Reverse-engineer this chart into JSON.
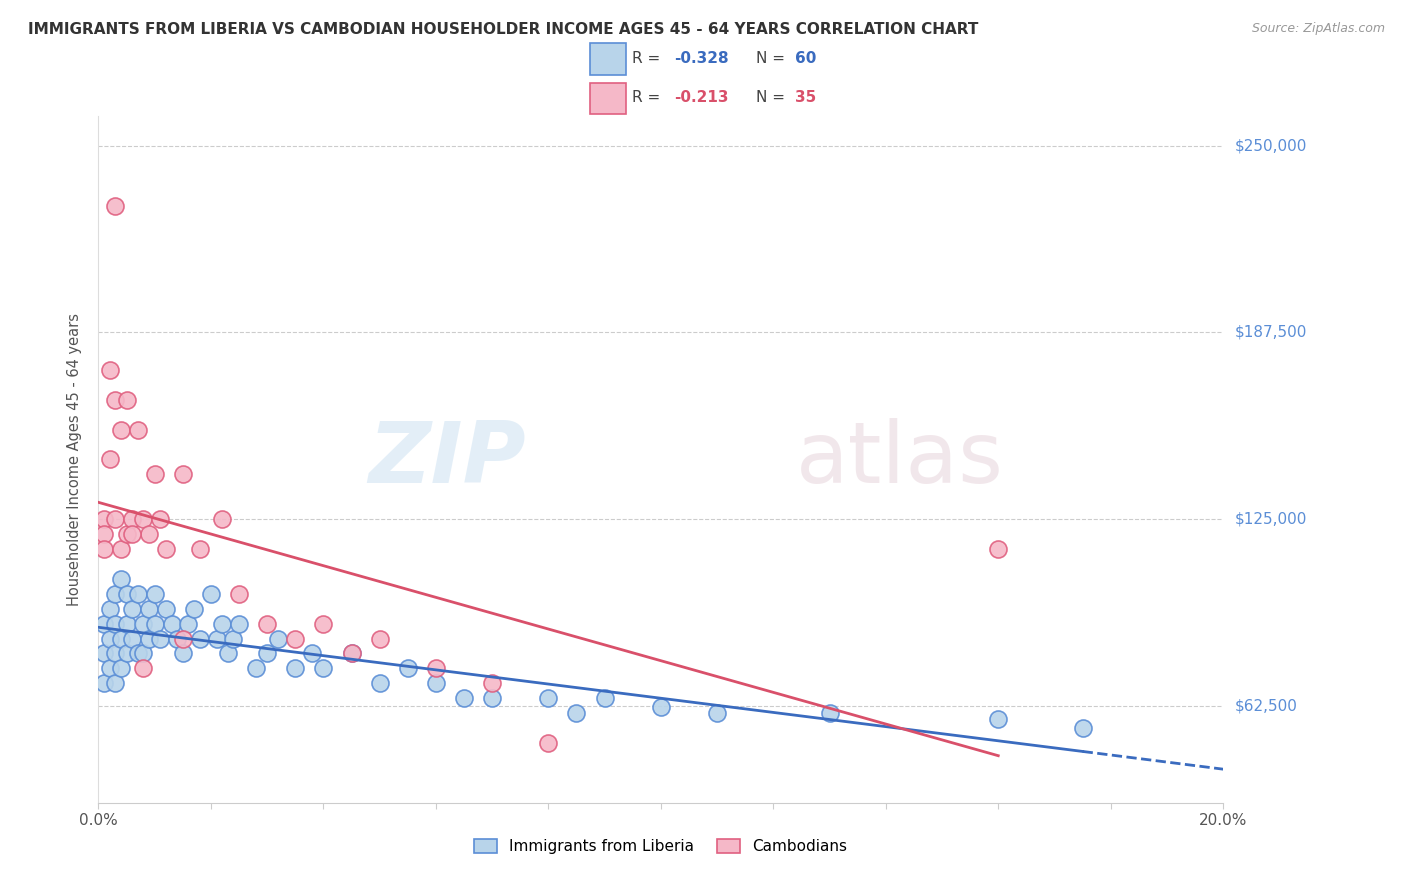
{
  "title": "IMMIGRANTS FROM LIBERIA VS CAMBODIAN HOUSEHOLDER INCOME AGES 45 - 64 YEARS CORRELATION CHART",
  "source": "Source: ZipAtlas.com",
  "ylabel": "Householder Income Ages 45 - 64 years",
  "legend_label1": "Immigrants from Liberia",
  "legend_label2": "Cambodians",
  "r1": -0.328,
  "n1": 60,
  "r2": -0.213,
  "n2": 35,
  "color1_face": "#b8d4ea",
  "color1_edge": "#5b8ed6",
  "color2_face": "#f5b8c8",
  "color2_edge": "#e06080",
  "line_color1": "#3a6bbf",
  "line_color2": "#d9506a",
  "ytick_labels": [
    "$62,500",
    "$125,000",
    "$187,500",
    "$250,000"
  ],
  "ytick_values": [
    62500,
    125000,
    187500,
    250000
  ],
  "ytick_color": "#5b8ed6",
  "xlim": [
    0.0,
    0.2
  ],
  "ylim": [
    30000,
    260000
  ],
  "watermark_zip": "ZIP",
  "watermark_atlas": "atlas",
  "background_color": "#ffffff",
  "blue_x": [
    0.001,
    0.001,
    0.001,
    0.002,
    0.002,
    0.002,
    0.003,
    0.003,
    0.003,
    0.003,
    0.004,
    0.004,
    0.004,
    0.005,
    0.005,
    0.005,
    0.006,
    0.006,
    0.007,
    0.007,
    0.008,
    0.008,
    0.009,
    0.009,
    0.01,
    0.01,
    0.011,
    0.012,
    0.013,
    0.014,
    0.015,
    0.016,
    0.017,
    0.018,
    0.02,
    0.021,
    0.022,
    0.023,
    0.024,
    0.025,
    0.028,
    0.03,
    0.032,
    0.035,
    0.038,
    0.04,
    0.045,
    0.05,
    0.055,
    0.06,
    0.065,
    0.07,
    0.08,
    0.085,
    0.09,
    0.1,
    0.11,
    0.13,
    0.16,
    0.175
  ],
  "blue_y": [
    90000,
    80000,
    70000,
    95000,
    85000,
    75000,
    100000,
    90000,
    80000,
    70000,
    105000,
    85000,
    75000,
    100000,
    90000,
    80000,
    95000,
    85000,
    100000,
    80000,
    90000,
    80000,
    95000,
    85000,
    100000,
    90000,
    85000,
    95000,
    90000,
    85000,
    80000,
    90000,
    95000,
    85000,
    100000,
    85000,
    90000,
    80000,
    85000,
    90000,
    75000,
    80000,
    85000,
    75000,
    80000,
    75000,
    80000,
    70000,
    75000,
    70000,
    65000,
    65000,
    65000,
    60000,
    65000,
    62000,
    60000,
    60000,
    58000,
    55000
  ],
  "pink_x": [
    0.001,
    0.001,
    0.001,
    0.002,
    0.002,
    0.003,
    0.003,
    0.004,
    0.004,
    0.005,
    0.005,
    0.006,
    0.007,
    0.008,
    0.009,
    0.01,
    0.011,
    0.012,
    0.015,
    0.018,
    0.022,
    0.025,
    0.03,
    0.035,
    0.04,
    0.045,
    0.05,
    0.06,
    0.07,
    0.08,
    0.015,
    0.006,
    0.008,
    0.16,
    0.003
  ],
  "pink_y": [
    125000,
    120000,
    115000,
    175000,
    145000,
    165000,
    125000,
    155000,
    115000,
    120000,
    165000,
    125000,
    155000,
    125000,
    120000,
    140000,
    125000,
    115000,
    140000,
    115000,
    125000,
    100000,
    90000,
    85000,
    90000,
    80000,
    85000,
    75000,
    70000,
    50000,
    85000,
    120000,
    75000,
    115000,
    230000
  ]
}
